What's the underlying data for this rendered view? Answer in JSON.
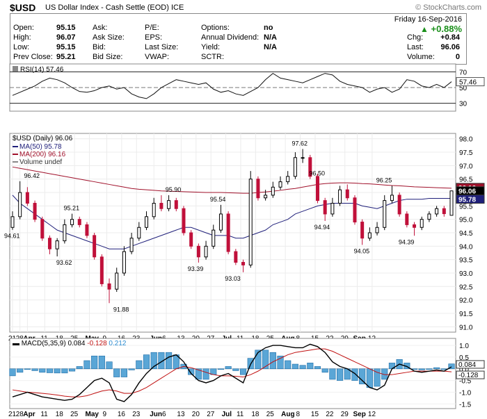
{
  "header": {
    "symbol": "$USD",
    "name": "US Dollar Index - Cash Settle (EOD)",
    "exchange": "ICE",
    "brand": "© StockCharts.com"
  },
  "quote": {
    "date": "Friday  16-Sep-2016",
    "change_pct": "+0.88%",
    "col1": [
      {
        "label": "Open:",
        "value": "95.15"
      },
      {
        "label": "High:",
        "value": "96.07"
      },
      {
        "label": "Low:",
        "value": "95.15"
      },
      {
        "label": "Prev Close:",
        "value": "95.21"
      }
    ],
    "col2": [
      "Ask:",
      "Ask Size:",
      "Bid:",
      "Bid Size:"
    ],
    "col3": [
      "P/E:",
      "EPS:",
      "Last Size:",
      "VWAP:"
    ],
    "col4": [
      {
        "label": "Options:",
        "value": "no"
      },
      {
        "label": "Annual Dividend:",
        "value": "N/A"
      },
      {
        "label": "Yield:",
        "value": "N/A"
      },
      {
        "label": "SCTR:",
        "value": ""
      }
    ],
    "col5": [
      {
        "label": "Chg:",
        "value": "+0.84"
      },
      {
        "label": "Last:",
        "value": "96.06"
      },
      {
        "label": "Volume:",
        "value": "0"
      }
    ]
  },
  "chart_data": [
    {
      "type": "line",
      "panel": "rsi",
      "legend": "RSI(14) 57.46",
      "ylim": [
        20,
        80
      ],
      "yticks": [
        70,
        50,
        30
      ],
      "ref_lines": [
        70,
        50,
        30
      ],
      "last_label": "57.46",
      "x": [
        0,
        3,
        6,
        9,
        12,
        15,
        18,
        21,
        24,
        27,
        30,
        33,
        36,
        39,
        42,
        45,
        48,
        51,
        54,
        57,
        60,
        63,
        66,
        69,
        72,
        75,
        78,
        81,
        84,
        87,
        90,
        93,
        96,
        99,
        102,
        105,
        108,
        111,
        114,
        117,
        120,
        123,
        126,
        129,
        132,
        135,
        138,
        141,
        144,
        147,
        150,
        153,
        156,
        159,
        162,
        165,
        168,
        171,
        174,
        177
      ],
      "values": [
        40,
        44,
        48,
        52,
        58,
        62,
        60,
        56,
        50,
        45,
        44,
        46,
        50,
        52,
        48,
        50,
        42,
        38,
        36,
        42,
        50,
        55,
        60,
        58,
        56,
        54,
        56,
        48,
        44,
        46,
        42,
        40,
        45,
        50,
        60,
        68,
        62,
        60,
        58,
        56,
        60,
        64,
        68,
        66,
        58,
        54,
        52,
        50,
        44,
        48,
        50,
        44,
        48,
        60,
        58,
        52,
        50,
        54,
        50,
        57.46
      ]
    },
    {
      "type": "candlestick",
      "panel": "price",
      "title": "$USD (Daily) 96.06",
      "legend": [
        {
          "name": "MA(50) 95.78",
          "color": "#1f1f7a"
        },
        {
          "name": "MA(200) 96.16",
          "color": "#a0102a"
        },
        {
          "name": "Volume undef",
          "color": "#888888"
        }
      ],
      "ylim": [
        90.8,
        98.2
      ],
      "yticks": [
        98.0,
        97.5,
        97.0,
        96.5,
        96.0,
        95.5,
        95.0,
        94.5,
        94.0,
        93.5,
        93.0,
        92.5,
        92.0,
        91.5,
        91.0
      ],
      "last_labels": [
        {
          "text": "96.16",
          "value": 96.16,
          "fill": "#a0102a"
        },
        {
          "text": "96.06",
          "value": 96.06,
          "fill": "#000000"
        },
        {
          "text": "95.78",
          "value": 95.78,
          "fill": "#1f1f7a"
        }
      ],
      "annotations": [
        {
          "x": 0,
          "y": 94.61,
          "text": "94.61"
        },
        {
          "x": 8,
          "y": 96.42,
          "text": "96.42"
        },
        {
          "x": 24,
          "y": 95.21,
          "text": "95.21"
        },
        {
          "x": 21,
          "y": 93.62,
          "text": "93.62"
        },
        {
          "x": 44,
          "y": 91.88,
          "text": "91.88"
        },
        {
          "x": 65,
          "y": 95.9,
          "text": "95.90"
        },
        {
          "x": 74,
          "y": 93.39,
          "text": "93.39"
        },
        {
          "x": 83,
          "y": 95.54,
          "text": "95.54"
        },
        {
          "x": 89,
          "y": 93.03,
          "text": "93.03"
        },
        {
          "x": 116,
          "y": 97.62,
          "text": "97.62"
        },
        {
          "x": 123,
          "y": 96.5,
          "text": "96.50"
        },
        {
          "x": 125,
          "y": 94.94,
          "text": "94.94"
        },
        {
          "x": 141,
          "y": 94.05,
          "text": "94.05"
        },
        {
          "x": 150,
          "y": 96.25,
          "text": "96.25"
        },
        {
          "x": 159,
          "y": 94.39,
          "text": "94.39"
        }
      ],
      "x": [
        0,
        3,
        6,
        9,
        12,
        15,
        18,
        21,
        24,
        27,
        30,
        33,
        36,
        39,
        42,
        45,
        48,
        51,
        54,
        57,
        60,
        63,
        66,
        69,
        72,
        75,
        78,
        81,
        84,
        87,
        90,
        93,
        96,
        99,
        102,
        105,
        108,
        111,
        114,
        117,
        120,
        123,
        126,
        129,
        132,
        135,
        138,
        141,
        144,
        147,
        150,
        153,
        156,
        159,
        162,
        165,
        168,
        171,
        174,
        177
      ],
      "open": [
        94.7,
        95.1,
        96.0,
        95.6,
        95.0,
        94.3,
        93.9,
        94.2,
        94.8,
        95.0,
        94.8,
        94.4,
        93.6,
        92.6,
        92.4,
        93.0,
        93.8,
        94.3,
        94.7,
        95.1,
        95.6,
        95.4,
        95.7,
        95.4,
        94.5,
        94.0,
        93.6,
        94.0,
        94.6,
        95.2,
        93.8,
        93.4,
        93.3,
        96.5,
        95.8,
        95.9,
        96.2,
        96.4,
        96.6,
        97.3,
        97.3,
        96.6,
        95.7,
        95.2,
        95.6,
        96.1,
        95.8,
        94.9,
        94.3,
        94.5,
        94.7,
        95.7,
        95.9,
        95.2,
        94.8,
        94.7,
        95.0,
        95.2,
        95.4,
        95.15
      ],
      "close": [
        95.1,
        96.0,
        95.6,
        95.0,
        94.3,
        93.9,
        94.2,
        94.8,
        95.0,
        94.8,
        94.4,
        93.6,
        92.6,
        92.4,
        93.0,
        93.8,
        94.3,
        94.7,
        95.1,
        95.6,
        95.4,
        95.7,
        95.4,
        94.5,
        94.0,
        93.6,
        94.0,
        94.6,
        95.2,
        93.8,
        93.4,
        93.3,
        96.5,
        95.8,
        95.9,
        96.2,
        96.4,
        96.6,
        97.3,
        97.3,
        96.6,
        95.7,
        95.2,
        95.6,
        96.1,
        95.8,
        94.9,
        94.3,
        94.5,
        94.7,
        95.7,
        95.9,
        95.2,
        94.8,
        94.7,
        95.0,
        95.2,
        95.4,
        95.21,
        96.06
      ],
      "high": [
        95.3,
        96.42,
        96.2,
        95.7,
        95.1,
        94.4,
        94.3,
        95.0,
        95.21,
        95.1,
        94.9,
        94.5,
        93.7,
        92.8,
        93.2,
        94.0,
        94.5,
        94.9,
        95.3,
        95.8,
        95.9,
        95.9,
        95.8,
        95.5,
        94.6,
        94.1,
        94.2,
        94.8,
        95.54,
        95.3,
        93.9,
        93.5,
        96.8,
        96.6,
        96.1,
        96.4,
        96.6,
        96.8,
        97.5,
        97.62,
        97.4,
        96.7,
        95.8,
        95.8,
        96.25,
        96.3,
        95.9,
        95.0,
        94.7,
        94.9,
        95.9,
        96.25,
        96.0,
        95.3,
        94.9,
        95.1,
        95.3,
        95.5,
        95.5,
        96.07
      ],
      "low": [
        94.61,
        95.0,
        95.5,
        94.9,
        94.2,
        93.7,
        93.62,
        94.1,
        94.7,
        94.7,
        94.3,
        93.5,
        92.5,
        91.88,
        92.3,
        92.9,
        93.7,
        94.2,
        94.6,
        95.0,
        95.3,
        95.3,
        95.3,
        94.4,
        93.9,
        93.39,
        93.5,
        93.9,
        94.5,
        93.7,
        93.3,
        93.03,
        93.2,
        95.7,
        95.7,
        95.8,
        96.1,
        96.3,
        96.5,
        97.1,
        96.5,
        95.6,
        94.94,
        95.1,
        95.5,
        95.7,
        94.8,
        94.05,
        94.2,
        94.4,
        94.6,
        95.6,
        95.1,
        94.7,
        94.39,
        94.6,
        94.9,
        95.1,
        95.1,
        95.15
      ],
      "ma50": [
        95.9,
        95.6,
        95.4,
        95.2,
        95.0,
        94.8,
        94.6,
        94.5,
        94.4,
        94.3,
        94.2,
        94.1,
        94.0,
        93.9,
        93.9,
        93.9,
        94.0,
        94.1,
        94.2,
        94.3,
        94.4,
        94.5,
        94.6,
        94.7,
        94.7,
        94.6,
        94.5,
        94.4,
        94.4,
        94.4,
        94.3,
        94.3,
        94.4,
        94.5,
        94.6,
        94.8,
        94.9,
        95.0,
        95.2,
        95.3,
        95.4,
        95.5,
        95.55,
        95.6,
        95.6,
        95.6,
        95.6,
        95.5,
        95.45,
        95.4,
        95.5,
        95.6,
        95.7,
        95.75,
        95.75,
        95.75,
        95.78,
        95.78,
        95.78,
        95.78
      ],
      "ma200": [
        96.95,
        96.9,
        96.85,
        96.8,
        96.75,
        96.7,
        96.65,
        96.6,
        96.55,
        96.5,
        96.45,
        96.4,
        96.35,
        96.3,
        96.25,
        96.2,
        96.15,
        96.12,
        96.1,
        96.08,
        96.06,
        96.05,
        96.04,
        96.03,
        96.02,
        96.01,
        96.0,
        96.0,
        96.0,
        95.99,
        95.98,
        95.97,
        95.97,
        96.0,
        96.02,
        96.05,
        96.08,
        96.12,
        96.15,
        96.2,
        96.25,
        96.3,
        96.33,
        96.35,
        96.36,
        96.36,
        96.35,
        96.33,
        96.32,
        96.3,
        96.28,
        96.26,
        96.25,
        96.23,
        96.21,
        96.2,
        96.19,
        96.18,
        96.17,
        96.16
      ]
    },
    {
      "type": "line",
      "panel": "macd",
      "legend": [
        {
          "name": "MACD(5,35,9)",
          "value": "0.084",
          "color": "#000000"
        },
        {
          "name": "",
          "value": "-0.128",
          "color": "#c01010"
        },
        {
          "name": "",
          "value": "0.212",
          "color": "#2a8bd0"
        }
      ],
      "ylim": [
        -1.7,
        1.3
      ],
      "yticks": [
        1.0,
        0.5,
        0.0,
        -0.5,
        -1.0,
        -1.5
      ],
      "last_labels": [
        {
          "text": "0.084",
          "value": 0.084
        },
        {
          "text": "-0.128",
          "value": -0.128
        }
      ],
      "x": [
        0,
        3,
        6,
        9,
        12,
        15,
        18,
        21,
        24,
        27,
        30,
        33,
        36,
        39,
        42,
        45,
        48,
        51,
        54,
        57,
        60,
        63,
        66,
        69,
        72,
        75,
        78,
        81,
        84,
        87,
        90,
        93,
        96,
        99,
        102,
        105,
        108,
        111,
        114,
        117,
        120,
        123,
        126,
        129,
        132,
        135,
        138,
        141,
        144,
        147,
        150,
        153,
        156,
        159,
        162,
        165,
        168,
        171,
        174,
        177
      ],
      "macd": [
        -1.2,
        -1.1,
        -1.0,
        -1.1,
        -1.2,
        -1.25,
        -1.3,
        -1.35,
        -1.3,
        -1.1,
        -0.8,
        -0.5,
        -0.4,
        -0.6,
        -1.3,
        -1.4,
        -1.1,
        -0.6,
        -0.2,
        0.1,
        0.3,
        0.5,
        0.6,
        0.3,
        -0.2,
        -0.5,
        -0.6,
        -0.5,
        -0.3,
        -0.2,
        -0.4,
        -0.6,
        0.2,
        0.7,
        0.9,
        1.0,
        1.0,
        0.95,
        0.9,
        0.9,
        1.05,
        0.95,
        0.7,
        0.3,
        0.1,
        0.0,
        -0.2,
        -0.5,
        -0.8,
        -0.9,
        -0.7,
        0.0,
        0.2,
        0.1,
        -0.1,
        -0.15,
        -0.1,
        -0.05,
        -0.1,
        0.084
      ],
      "signal": [
        -0.9,
        -0.95,
        -1.0,
        -1.02,
        -1.05,
        -1.08,
        -1.12,
        -1.17,
        -1.2,
        -1.2,
        -1.15,
        -1.05,
        -0.95,
        -0.9,
        -0.95,
        -1.05,
        -1.05,
        -0.95,
        -0.8,
        -0.6,
        -0.4,
        -0.2,
        0.0,
        0.1,
        0.05,
        -0.05,
        -0.15,
        -0.25,
        -0.3,
        -0.3,
        -0.32,
        -0.35,
        -0.25,
        -0.1,
        0.1,
        0.3,
        0.45,
        0.6,
        0.7,
        0.75,
        0.8,
        0.85,
        0.85,
        0.75,
        0.6,
        0.45,
        0.3,
        0.15,
        0.0,
        -0.15,
        -0.25,
        -0.25,
        -0.2,
        -0.15,
        -0.1,
        -0.1,
        -0.1,
        -0.1,
        -0.1,
        -0.128
      ]
    }
  ],
  "x_axis": {
    "ticks": [
      {
        "x": 0,
        "label": "21"
      },
      {
        "x": 3,
        "label": "28"
      },
      {
        "x": 6,
        "label": "Apr",
        "bold": true
      },
      {
        "x": 13,
        "label": "11"
      },
      {
        "x": 19,
        "label": "18"
      },
      {
        "x": 25,
        "label": "25"
      },
      {
        "x": 31,
        "label": "May",
        "bold": true
      },
      {
        "x": 38,
        "label": "9"
      },
      {
        "x": 44,
        "label": "16"
      },
      {
        "x": 50,
        "label": "23"
      },
      {
        "x": 57,
        "label": "Jun",
        "bold": true
      },
      {
        "x": 62,
        "label": "6"
      },
      {
        "x": 68,
        "label": "13"
      },
      {
        "x": 74,
        "label": "20"
      },
      {
        "x": 80,
        "label": "27"
      },
      {
        "x": 86,
        "label": "Jul",
        "bold": true
      },
      {
        "x": 92,
        "label": "11"
      },
      {
        "x": 98,
        "label": "18"
      },
      {
        "x": 104,
        "label": "25"
      },
      {
        "x": 110,
        "label": "Aug",
        "bold": true
      },
      {
        "x": 116,
        "label": "8"
      },
      {
        "x": 122,
        "label": "15"
      },
      {
        "x": 128,
        "label": "22"
      },
      {
        "x": 134,
        "label": "29"
      },
      {
        "x": 139,
        "label": "Sep",
        "bold": true
      },
      {
        "x": 145,
        "label": "12"
      }
    ]
  }
}
